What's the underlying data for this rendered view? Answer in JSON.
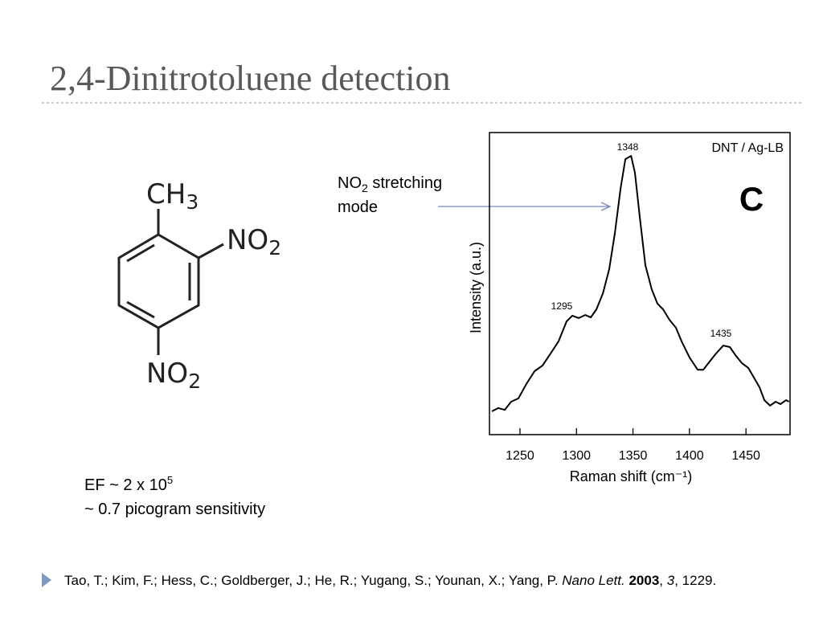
{
  "title": "2,4-Dinitrotoluene detection",
  "molecule": {
    "groups": [
      {
        "text": "CH",
        "sub": "3"
      },
      {
        "text": "NO",
        "sub": "2"
      },
      {
        "text": "NO",
        "sub": "2"
      }
    ]
  },
  "annotation": {
    "text": "NO",
    "sub": "2",
    "rest": " stretching",
    "line2": "mode"
  },
  "notes": [
    {
      "text": "EF ~ 2 x 10",
      "sup": "5"
    },
    {
      "text": "~ 0.7 picogram sensitivity"
    }
  ],
  "citation": [
    {
      "text": "Tao, T.; Kim, F.; Hess, C.; Goldberger, J.; He, R.; Yugang, S.; Younan, X.; Yang, P. "
    },
    {
      "text": "Nano Lett.",
      "style": "italic"
    },
    {
      "text": " "
    },
    {
      "text": "2003",
      "style": "bold"
    },
    {
      "text": ", "
    },
    {
      "text": "3",
      "style": "italic"
    },
    {
      "text": ", 1229."
    }
  ],
  "chart_data": {
    "type": "line",
    "title": "DNT / Ag-LB",
    "panel_label": "C",
    "x_label": "Raman shift (cm⁻¹)",
    "y_label": "Intensity (a.u.)",
    "annotations": [
      "1348",
      "1295",
      "1435"
    ],
    "color": "#000000",
    "x": [
      1225.1,
      1230.8,
      1236.5,
      1242.2,
      1248.6,
      1255.7,
      1262.9,
      1270.0,
      1277.1,
      1284.2,
      1291.3,
      1296.3,
      1302.0,
      1307.7,
      1312.7,
      1317.7,
      1323.4,
      1329.0,
      1334.0,
      1339.0,
      1343.3,
      1348.3,
      1351.7,
      1356.0,
      1361.0,
      1366.6,
      1371.6,
      1376.6,
      1382.3,
      1388.0,
      1393.0,
      1400.1,
      1407.2,
      1412.2,
      1417.9,
      1423.6,
      1430.0,
      1435.7,
      1440.7,
      1446.3,
      1452.0,
      1457.0,
      1462.0,
      1466.3,
      1471.3,
      1476.3,
      1480.5,
      1485.5,
      1488.1
    ],
    "values": [
      7.7,
      8.8,
      8.2,
      10.9,
      12.0,
      16.8,
      21.0,
      22.9,
      26.9,
      30.9,
      37.5,
      39.4,
      38.6,
      39.6,
      38.8,
      41.5,
      46.8,
      54.8,
      66.8,
      81.4,
      91.2,
      92.3,
      86.7,
      72.1,
      56.1,
      48.1,
      43.4,
      41.5,
      38.0,
      35.4,
      30.9,
      25.5,
      21.5,
      21.5,
      24.2,
      26.9,
      29.5,
      29.0,
      26.3,
      23.7,
      22.1,
      18.9,
      15.7,
      11.4,
      9.6,
      10.9,
      10.1,
      11.4,
      10.9
    ],
    "xlim": [
      1223,
      1489
    ],
    "ylim": [
      0,
      100
    ],
    "xticks": [
      1250,
      1300,
      1350,
      1400,
      1450
    ]
  }
}
